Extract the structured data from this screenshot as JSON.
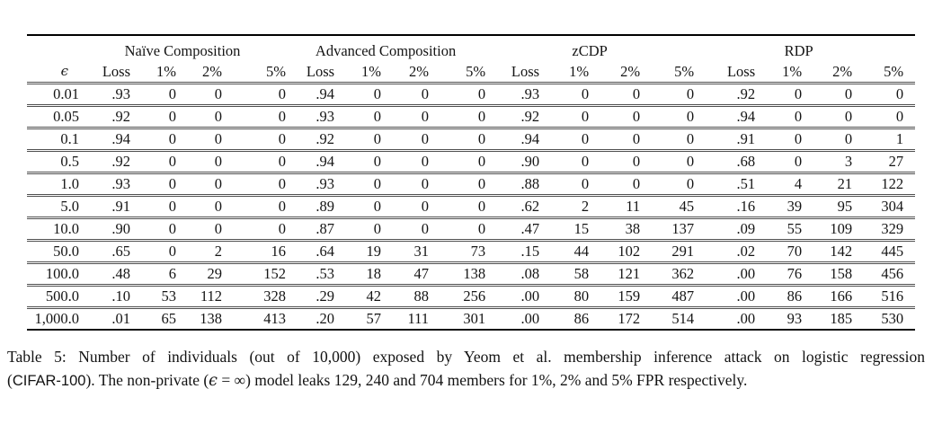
{
  "table": {
    "group_labels": [
      "Naïve Composition",
      "Advanced Composition",
      "zCDP",
      "RDP"
    ],
    "epsilon_header": "ϵ",
    "sub_headers": [
      "Loss",
      "1%",
      "2%",
      "5%"
    ],
    "rows": [
      {
        "epsilon": "0.01",
        "cells": [
          ".93",
          "0",
          "0",
          "0",
          ".94",
          "0",
          "0",
          "0",
          ".93",
          "0",
          "0",
          "0",
          ".92",
          "0",
          "0",
          "0"
        ]
      },
      {
        "epsilon": "0.05",
        "cells": [
          ".92",
          "0",
          "0",
          "0",
          ".93",
          "0",
          "0",
          "0",
          ".92",
          "0",
          "0",
          "0",
          ".94",
          "0",
          "0",
          "0"
        ]
      },
      {
        "epsilon": "0.1",
        "cells": [
          ".94",
          "0",
          "0",
          "0",
          ".92",
          "0",
          "0",
          "0",
          ".94",
          "0",
          "0",
          "0",
          ".91",
          "0",
          "0",
          "1"
        ]
      },
      {
        "epsilon": "0.5",
        "cells": [
          ".92",
          "0",
          "0",
          "0",
          ".94",
          "0",
          "0",
          "0",
          ".90",
          "0",
          "0",
          "0",
          ".68",
          "0",
          "3",
          "27"
        ]
      },
      {
        "epsilon": "1.0",
        "cells": [
          ".93",
          "0",
          "0",
          "0",
          ".93",
          "0",
          "0",
          "0",
          ".88",
          "0",
          "0",
          "0",
          ".51",
          "4",
          "21",
          "122"
        ]
      },
      {
        "epsilon": "5.0",
        "cells": [
          ".91",
          "0",
          "0",
          "0",
          ".89",
          "0",
          "0",
          "0",
          ".62",
          "2",
          "11",
          "45",
          ".16",
          "39",
          "95",
          "304"
        ]
      },
      {
        "epsilon": "10.0",
        "cells": [
          ".90",
          "0",
          "0",
          "0",
          ".87",
          "0",
          "0",
          "0",
          ".47",
          "15",
          "38",
          "137",
          ".09",
          "55",
          "109",
          "329"
        ]
      },
      {
        "epsilon": "50.0",
        "cells": [
          ".65",
          "0",
          "2",
          "16",
          ".64",
          "19",
          "31",
          "73",
          ".15",
          "44",
          "102",
          "291",
          ".02",
          "70",
          "142",
          "445"
        ]
      },
      {
        "epsilon": "100.0",
        "cells": [
          ".48",
          "6",
          "29",
          "152",
          ".53",
          "18",
          "47",
          "138",
          ".08",
          "58",
          "121",
          "362",
          ".00",
          "76",
          "158",
          "456"
        ]
      },
      {
        "epsilon": "500.0",
        "cells": [
          ".10",
          "53",
          "112",
          "328",
          ".29",
          "42",
          "88",
          "256",
          ".00",
          "80",
          "159",
          "487",
          ".00",
          "86",
          "166",
          "516"
        ]
      },
      {
        "epsilon": "1,000.0",
        "cells": [
          ".01",
          "65",
          "138",
          "413",
          ".20",
          "57",
          "111",
          "301",
          ".00",
          "86",
          "172",
          "514",
          ".00",
          "93",
          "185",
          "530"
        ]
      }
    ]
  },
  "caption": {
    "line1": "Table 5: Number of individuals (out of 10,000) exposed by Yeom et al. membership inference attack on logistic regression",
    "line2_open": "(",
    "dataset": "CIFAR-100",
    "line2_mid": "). The non-private (",
    "epsilon": "ϵ",
    "line2_rest": " = ∞) model leaks 129, 240 and 704 members for 1%, 2% and 5% FPR respectively."
  }
}
